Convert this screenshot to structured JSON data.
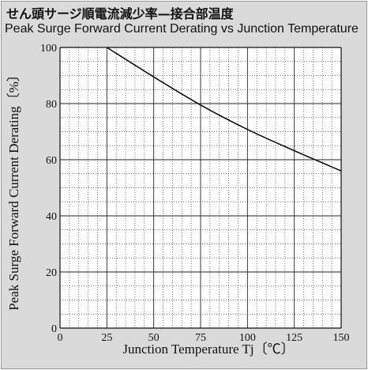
{
  "title_jp": "せん頭サージ順電流減少率—接合部温度",
  "title_en": "Peak Surge Forward Current Derating vs Junction Temperature",
  "chart_data": {
    "type": "line",
    "xlabel": "Junction Temperature  Tj〔℃〕",
    "ylabel": "Peak Surge Forward Current Derating〔%〕",
    "xlim": [
      0,
      150
    ],
    "ylim": [
      0,
      100
    ],
    "x_ticks": [
      "0",
      "25",
      "50",
      "75",
      "100",
      "125",
      "150"
    ],
    "y_ticks": [
      "0",
      "20",
      "40",
      "60",
      "80",
      "100"
    ],
    "grid": true,
    "series": [
      {
        "x": [
          25,
          50,
          75,
          100,
          125,
          150
        ],
        "y": [
          100,
          89.5,
          79.5,
          70.8,
          63.2,
          56
        ]
      }
    ]
  }
}
